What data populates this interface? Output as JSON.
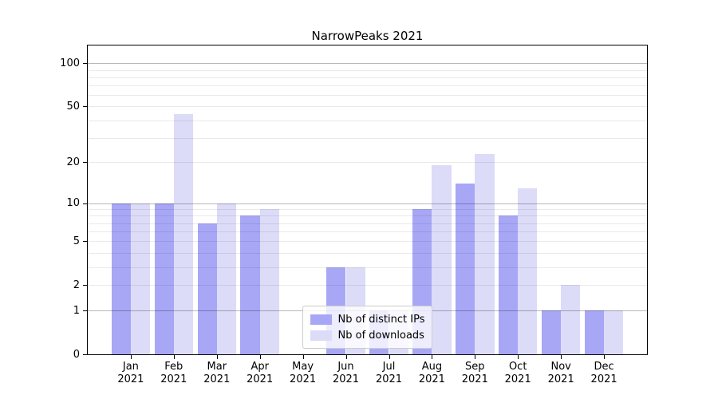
{
  "title": "NarrowPeaks 2021",
  "chart_data": {
    "type": "bar",
    "title": "NarrowPeaks 2021",
    "xlabel": "",
    "ylabel": "",
    "scale": "log1p",
    "ylim": [
      0,
      133
    ],
    "grid": true,
    "categories": [
      "Jan",
      "Feb",
      "Mar",
      "Apr",
      "May",
      "Jun",
      "Jul",
      "Aug",
      "Sep",
      "Oct",
      "Nov",
      "Dec"
    ],
    "category_year": "2021",
    "series": [
      {
        "name": "Nb of distinct IPs",
        "color": "#a7a7f6",
        "values": [
          10,
          10,
          7,
          8,
          0,
          3,
          1,
          9,
          14,
          8,
          1,
          1
        ]
      },
      {
        "name": "Nb of downloads",
        "color": "#dcdcf8",
        "values": [
          10,
          44,
          10,
          9,
          0,
          3,
          1,
          19,
          23,
          13,
          2,
          1
        ]
      }
    ],
    "yticks": [
      0,
      1,
      2,
      5,
      10,
      20,
      50,
      100
    ],
    "gridlines": {
      "decade": [
        1,
        10,
        100
      ],
      "minor": [
        2,
        3,
        4,
        5,
        6,
        7,
        8,
        9,
        20,
        30,
        40,
        50,
        60,
        70,
        80,
        90
      ]
    },
    "legend": {
      "position": "lower center"
    }
  }
}
